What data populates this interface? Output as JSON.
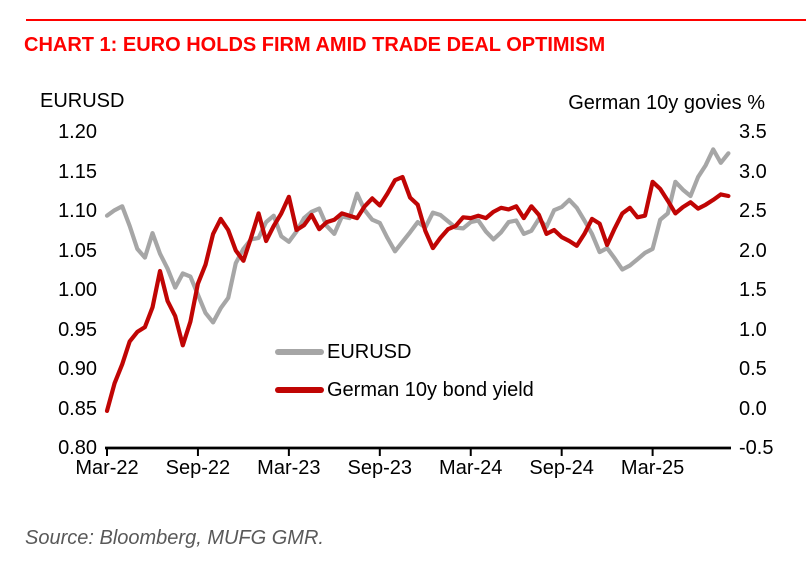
{
  "page": {
    "title": "CHART 1: EURO HOLDS FIRM AMID TRADE DEAL OPTIMISM",
    "source_note": "Source: Bloomberg, MUFG GMR."
  },
  "theme": {
    "background": "#ffffff",
    "title_red": "#fe0100",
    "accent_rule_red": "#fe0100",
    "line_gray": "#a6a6a6",
    "line_red": "#c00504",
    "axis_black": "#000000",
    "source_gray": "#595959"
  },
  "chart_data": {
    "type": "line",
    "title": "CHART 1: EURO HOLDS FIRM AMID TRADE DEAL OPTIMISM",
    "grid": "off",
    "legend_position": "center-lower-left-of-plot",
    "left_axis": {
      "label": "EURUSD",
      "range": [
        0.8,
        1.2
      ],
      "ticks": [
        "1.20",
        "1.15",
        "1.10",
        "1.05",
        "1.00",
        "0.95",
        "0.90",
        "0.85",
        "0.80"
      ]
    },
    "right_axis": {
      "label": "German 10y govies %",
      "range": [
        -0.5,
        3.5
      ],
      "ticks": [
        "3.5",
        "3.0",
        "2.5",
        "2.0",
        "1.5",
        "1.0",
        "0.5",
        "0.0",
        "-0.5"
      ]
    },
    "x_axis": {
      "unit": "month",
      "start": "Mar-22",
      "end": "Aug-25",
      "points_per_month": 2,
      "tick_labels": [
        "Mar-22",
        "Sep-22",
        "Mar-23",
        "Sep-23",
        "Mar-24",
        "Sep-24",
        "Mar-25"
      ],
      "tick_month_offsets": [
        0,
        6,
        12,
        18,
        24,
        30,
        36
      ]
    },
    "legend": {
      "items": [
        {
          "label": "EURUSD",
          "color": "#a6a6a6"
        },
        {
          "label": "German 10y bond yield",
          "color": "#c00504"
        }
      ]
    },
    "series": [
      {
        "name": "EURUSD",
        "axis": "left",
        "color": "#a6a6a6",
        "values": [
          1.094,
          1.101,
          1.106,
          1.081,
          1.052,
          1.041,
          1.072,
          1.046,
          1.027,
          1.003,
          1.021,
          1.017,
          0.994,
          0.971,
          0.959,
          0.977,
          0.99,
          1.034,
          1.052,
          1.064,
          1.066,
          1.086,
          1.094,
          1.068,
          1.061,
          1.074,
          1.091,
          1.099,
          1.103,
          1.081,
          1.071,
          1.093,
          1.091,
          1.122,
          1.101,
          1.089,
          1.085,
          1.066,
          1.049,
          1.061,
          1.073,
          1.086,
          1.079,
          1.098,
          1.095,
          1.087,
          1.079,
          1.078,
          1.086,
          1.088,
          1.074,
          1.064,
          1.073,
          1.086,
          1.088,
          1.071,
          1.075,
          1.09,
          1.08,
          1.101,
          1.105,
          1.114,
          1.104,
          1.088,
          1.071,
          1.048,
          1.053,
          1.04,
          1.026,
          1.031,
          1.039,
          1.047,
          1.052,
          1.089,
          1.097,
          1.137,
          1.127,
          1.119,
          1.143,
          1.158,
          1.178,
          1.161,
          1.173
        ]
      },
      {
        "name": "German 10y bond yield",
        "axis": "right",
        "color": "#c00504",
        "values": [
          -0.03,
          0.32,
          0.56,
          0.85,
          0.97,
          1.03,
          1.28,
          1.74,
          1.36,
          1.17,
          0.8,
          1.1,
          1.58,
          1.82,
          2.21,
          2.4,
          2.26,
          2.0,
          1.87,
          2.16,
          2.47,
          2.12,
          2.31,
          2.47,
          2.68,
          2.26,
          2.32,
          2.45,
          2.27,
          2.36,
          2.39,
          2.47,
          2.44,
          2.41,
          2.56,
          2.66,
          2.57,
          2.72,
          2.89,
          2.93,
          2.67,
          2.58,
          2.25,
          2.03,
          2.16,
          2.27,
          2.31,
          2.42,
          2.41,
          2.44,
          2.41,
          2.49,
          2.54,
          2.52,
          2.56,
          2.41,
          2.56,
          2.45,
          2.21,
          2.26,
          2.17,
          2.12,
          2.06,
          2.21,
          2.4,
          2.34,
          2.07,
          2.28,
          2.47,
          2.54,
          2.42,
          2.44,
          2.87,
          2.78,
          2.63,
          2.47,
          2.55,
          2.61,
          2.53,
          2.58,
          2.64,
          2.71,
          2.69
        ]
      }
    ]
  }
}
